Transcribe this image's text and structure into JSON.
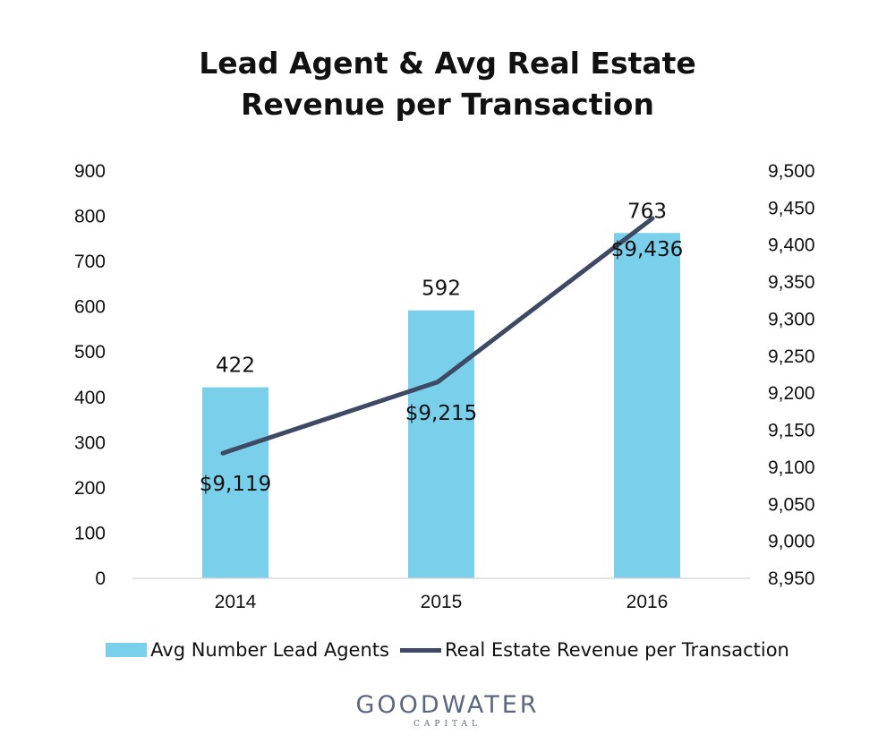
{
  "chart_data": {
    "type": "bar",
    "title_lines": [
      "Lead Agent & Avg Real Estate",
      "Revenue per Transaction"
    ],
    "categories": [
      "2014",
      "2015",
      "2016"
    ],
    "series": [
      {
        "name": "Avg Number Lead Agents",
        "type": "bar",
        "axis": "left",
        "color": "#7ACFEA",
        "values": [
          422,
          592,
          763
        ],
        "labels": [
          "422",
          "592",
          "763"
        ]
      },
      {
        "name": "Real Estate Revenue per Transaction",
        "type": "line",
        "axis": "right",
        "color": "#3E4A63",
        "values": [
          9119,
          9215,
          9436
        ],
        "labels": [
          "$9,119",
          "$9,215",
          "$9,436"
        ]
      }
    ],
    "y_left": {
      "ylim": [
        0,
        900
      ],
      "ticks": [
        0,
        100,
        200,
        300,
        400,
        500,
        600,
        700,
        800,
        900
      ],
      "tick_labels": [
        "0",
        "100",
        "200",
        "300",
        "400",
        "500",
        "600",
        "700",
        "800",
        "900"
      ]
    },
    "y_right": {
      "ylim": [
        8950,
        9500
      ],
      "ticks": [
        8950,
        9000,
        9050,
        9100,
        9150,
        9200,
        9250,
        9300,
        9350,
        9400,
        9450,
        9500
      ],
      "tick_labels": [
        "8,950",
        "9,000",
        "9,050",
        "9,100",
        "9,150",
        "9,200",
        "9,250",
        "9,300",
        "9,350",
        "9,400",
        "9,450",
        "9,500"
      ]
    },
    "grid": false,
    "legend_position": "bottom"
  },
  "logo": {
    "main": "GOODWATER",
    "sub": "CAPITAL"
  }
}
